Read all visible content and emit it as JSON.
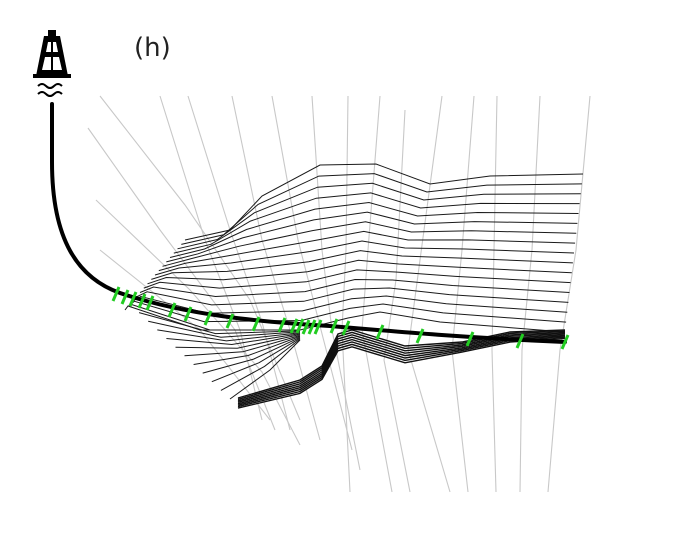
{
  "panel_label": "(h)",
  "icons": {
    "rig": "drilling-rig-icon",
    "water": "water-waves-icon"
  },
  "colors": {
    "background": "#ffffff",
    "fault_lines": "#c8c8c8",
    "horizons": "#1a1a1a",
    "wellbore": "#000000",
    "well_markers": "#22cc22"
  }
}
